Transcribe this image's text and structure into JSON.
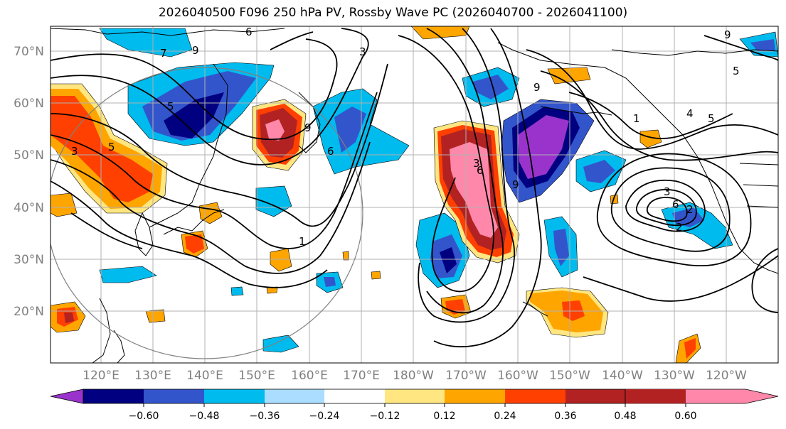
{
  "title": "2026040500 F096 250 hPa PV, Rossby Wave PC (2026040700 - 2026041100)",
  "map": {
    "lat_labels": [
      "70°N",
      "60°N",
      "50°N",
      "40°N",
      "30°N",
      "20°N"
    ],
    "lon_labels": [
      "120°E",
      "130°E",
      "140°E",
      "150°E",
      "160°E",
      "170°E",
      "180°W",
      "170°W",
      "160°W",
      "150°W",
      "140°W",
      "130°W",
      "120°W"
    ]
  },
  "colorbar": {
    "tick_labels": [
      "−0.60",
      "−0.48",
      "−0.36",
      "−0.24",
      "−0.12",
      "0.12",
      "0.24",
      "0.36",
      "0.48",
      "0.60"
    ],
    "colors": [
      "#9933cc",
      "#000080",
      "#3355cc",
      "#00bbee",
      "#aaddff",
      "#ffffff",
      "#ffe680",
      "#ffa500",
      "#ff4000",
      "#b22222",
      "#ff88aa"
    ]
  },
  "contour_labels": [
    "9",
    "6",
    "3",
    "5",
    "5",
    "3",
    "9",
    "6",
    "1",
    "9",
    "6",
    "3",
    "9",
    "3",
    "1",
    "4",
    "5",
    "2",
    "2",
    "5",
    "6",
    "7",
    "9"
  ]
}
